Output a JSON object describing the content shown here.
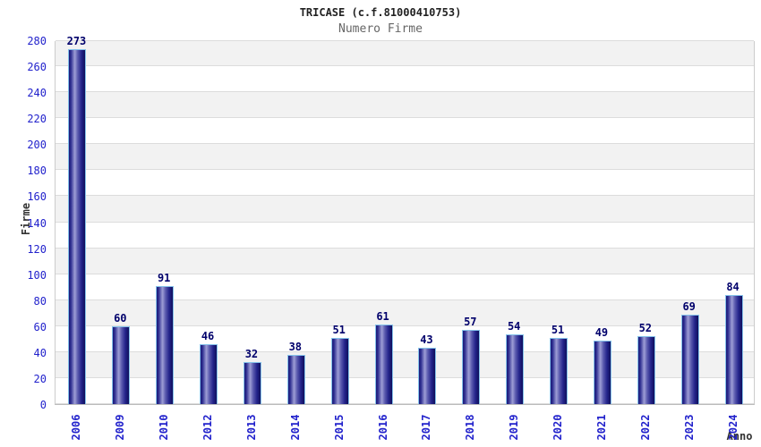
{
  "chart_data": {
    "type": "bar",
    "title": "TRICASE (c.f.81000410753)",
    "subtitle": "Numero Firme",
    "xlabel": "Anno",
    "ylabel": "Firme",
    "categories": [
      "2006",
      "2009",
      "2010",
      "2012",
      "2013",
      "2014",
      "2015",
      "2016",
      "2017",
      "2018",
      "2019",
      "2020",
      "2021",
      "2022",
      "2023",
      "2024"
    ],
    "values": [
      273,
      60,
      91,
      46,
      32,
      38,
      51,
      61,
      43,
      57,
      54,
      51,
      49,
      52,
      69,
      84
    ],
    "ylim": [
      0,
      280
    ],
    "ytick_step": 20,
    "grid": true,
    "legend": "none",
    "colors": {
      "bar_dark": "#1b1b78",
      "bar_highlight": "#9e9ed6",
      "bar_border": "#85c2ea",
      "value_label": "#00006b",
      "axis_tick": "#2222cc",
      "band_gray": "#f2f2f2",
      "band_white": "#ffffff",
      "gridline": "#dcdcdc",
      "title": "#222222",
      "subtitle": "#666666",
      "axis_title": "#333333"
    }
  }
}
